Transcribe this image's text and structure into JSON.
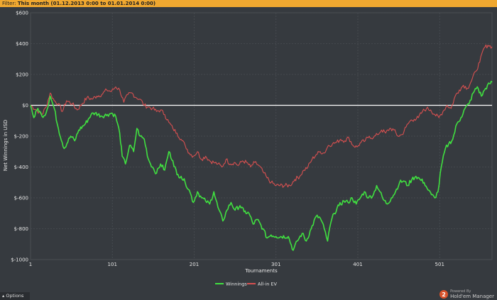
{
  "filter": {
    "label": "Filter:",
    "value": "This month (01.12.2013 0:00 to 01.01.2014 0:00)"
  },
  "footer": {
    "options_label": "Options",
    "options_icon": "caret-up-icon",
    "powered_by": "Powered By",
    "brand": "Hold'em Manager",
    "brand_badge": "2"
  },
  "chart_data": {
    "type": "line",
    "xlabel": "Tournaments",
    "ylabel": "Net Winnings in USD",
    "x_ticks": [
      1,
      101,
      201,
      301,
      401,
      501
    ],
    "y_ticks": [
      600,
      400,
      200,
      0,
      -200,
      -400,
      -600,
      -800,
      -1000
    ],
    "y_tick_labels": [
      "$600",
      "$400",
      "$200",
      "$0",
      "$-200",
      "$-400",
      "$-600",
      "$-800",
      "$-1000"
    ],
    "xlim": [
      1,
      565
    ],
    "ylim": [
      -1000,
      600
    ],
    "grid": true,
    "legend_position": "bottom-center",
    "colors": {
      "background": "#363a3f",
      "grid": "#4a4e53",
      "axis_text": "#e6e6e6",
      "zero_line": "#ffffff"
    },
    "series": [
      {
        "name": "Winnings",
        "color": "#40e040",
        "points": [
          [
            1,
            0
          ],
          [
            5,
            -80
          ],
          [
            10,
            -20
          ],
          [
            15,
            -70
          ],
          [
            20,
            -50
          ],
          [
            25,
            60
          ],
          [
            30,
            -20
          ],
          [
            35,
            -150
          ],
          [
            42,
            -280
          ],
          [
            50,
            -200
          ],
          [
            55,
            -230
          ],
          [
            60,
            -160
          ],
          [
            68,
            -120
          ],
          [
            75,
            -60
          ],
          [
            80,
            -50
          ],
          [
            88,
            -70
          ],
          [
            95,
            -60
          ],
          [
            100,
            -50
          ],
          [
            105,
            -70
          ],
          [
            110,
            -180
          ],
          [
            113,
            -330
          ],
          [
            117,
            -380
          ],
          [
            122,
            -260
          ],
          [
            127,
            -300
          ],
          [
            131,
            -150
          ],
          [
            135,
            -200
          ],
          [
            140,
            -220
          ],
          [
            145,
            -350
          ],
          [
            150,
            -400
          ],
          [
            155,
            -440
          ],
          [
            160,
            -380
          ],
          [
            165,
            -420
          ],
          [
            170,
            -300
          ],
          [
            175,
            -360
          ],
          [
            180,
            -450
          ],
          [
            185,
            -460
          ],
          [
            190,
            -500
          ],
          [
            195,
            -550
          ],
          [
            200,
            -630
          ],
          [
            205,
            -560
          ],
          [
            210,
            -600
          ],
          [
            215,
            -620
          ],
          [
            220,
            -640
          ],
          [
            225,
            -560
          ],
          [
            230,
            -660
          ],
          [
            236,
            -750
          ],
          [
            241,
            -680
          ],
          [
            246,
            -630
          ],
          [
            251,
            -680
          ],
          [
            257,
            -650
          ],
          [
            262,
            -690
          ],
          [
            268,
            -700
          ],
          [
            273,
            -770
          ],
          [
            278,
            -740
          ],
          [
            285,
            -800
          ],
          [
            290,
            -860
          ],
          [
            295,
            -840
          ],
          [
            301,
            -850
          ],
          [
            316,
            -850
          ],
          [
            322,
            -940
          ],
          [
            327,
            -880
          ],
          [
            333,
            -830
          ],
          [
            338,
            -880
          ],
          [
            344,
            -800
          ],
          [
            350,
            -720
          ],
          [
            355,
            -730
          ],
          [
            360,
            -800
          ],
          [
            364,
            -880
          ],
          [
            368,
            -760
          ],
          [
            372,
            -700
          ],
          [
            378,
            -650
          ],
          [
            384,
            -620
          ],
          [
            389,
            -630
          ],
          [
            394,
            -600
          ],
          [
            399,
            -640
          ],
          [
            404,
            -600
          ],
          [
            409,
            -560
          ],
          [
            414,
            -600
          ],
          [
            420,
            -580
          ],
          [
            424,
            -520
          ],
          [
            428,
            -560
          ],
          [
            432,
            -610
          ],
          [
            437,
            -640
          ],
          [
            442,
            -600
          ],
          [
            447,
            -560
          ],
          [
            452,
            -500
          ],
          [
            457,
            -490
          ],
          [
            462,
            -520
          ],
          [
            467,
            -480
          ],
          [
            472,
            -460
          ],
          [
            477,
            -480
          ],
          [
            482,
            -500
          ],
          [
            487,
            -550
          ],
          [
            491,
            -580
          ],
          [
            495,
            -600
          ],
          [
            499,
            -560
          ],
          [
            503,
            -400
          ],
          [
            508,
            -280
          ],
          [
            512,
            -250
          ],
          [
            517,
            -220
          ],
          [
            522,
            -120
          ],
          [
            527,
            -80
          ],
          [
            532,
            -20
          ],
          [
            537,
            10
          ],
          [
            542,
            80
          ],
          [
            547,
            120
          ],
          [
            552,
            60
          ],
          [
            557,
            110
          ],
          [
            562,
            140
          ],
          [
            565,
            150
          ]
        ]
      },
      {
        "name": "All-in EV",
        "color": "#d85050",
        "points": [
          [
            1,
            0
          ],
          [
            8,
            -30
          ],
          [
            15,
            -60
          ],
          [
            20,
            -10
          ],
          [
            25,
            80
          ],
          [
            30,
            30
          ],
          [
            35,
            10
          ],
          [
            40,
            -40
          ],
          [
            45,
            30
          ],
          [
            52,
            10
          ],
          [
            58,
            -30
          ],
          [
            64,
            10
          ],
          [
            70,
            50
          ],
          [
            76,
            40
          ],
          [
            82,
            60
          ],
          [
            88,
            70
          ],
          [
            94,
            100
          ],
          [
            100,
            90
          ],
          [
            105,
            120
          ],
          [
            110,
            100
          ],
          [
            115,
            20
          ],
          [
            120,
            70
          ],
          [
            125,
            80
          ],
          [
            130,
            50
          ],
          [
            135,
            40
          ],
          [
            140,
            0
          ],
          [
            145,
            -10
          ],
          [
            150,
            -20
          ],
          [
            155,
            -40
          ],
          [
            160,
            -30
          ],
          [
            165,
            -60
          ],
          [
            170,
            -110
          ],
          [
            175,
            -150
          ],
          [
            180,
            -180
          ],
          [
            185,
            -220
          ],
          [
            190,
            -260
          ],
          [
            195,
            -310
          ],
          [
            200,
            -330
          ],
          [
            205,
            -300
          ],
          [
            210,
            -350
          ],
          [
            215,
            -330
          ],
          [
            220,
            -360
          ],
          [
            225,
            -370
          ],
          [
            230,
            -380
          ],
          [
            235,
            -400
          ],
          [
            240,
            -350
          ],
          [
            245,
            -380
          ],
          [
            250,
            -370
          ],
          [
            255,
            -390
          ],
          [
            260,
            -360
          ],
          [
            265,
            -370
          ],
          [
            270,
            -400
          ],
          [
            275,
            -370
          ],
          [
            280,
            -390
          ],
          [
            285,
            -430
          ],
          [
            290,
            -470
          ],
          [
            295,
            -500
          ],
          [
            301,
            -520
          ],
          [
            318,
            -520
          ],
          [
            324,
            -480
          ],
          [
            330,
            -460
          ],
          [
            335,
            -420
          ],
          [
            340,
            -400
          ],
          [
            345,
            -350
          ],
          [
            350,
            -320
          ],
          [
            355,
            -300
          ],
          [
            360,
            -310
          ],
          [
            365,
            -260
          ],
          [
            370,
            -250
          ],
          [
            375,
            -240
          ],
          [
            380,
            -220
          ],
          [
            385,
            -230
          ],
          [
            390,
            -210
          ],
          [
            395,
            -260
          ],
          [
            400,
            -270
          ],
          [
            405,
            -240
          ],
          [
            410,
            -230
          ],
          [
            415,
            -200
          ],
          [
            420,
            -210
          ],
          [
            425,
            -190
          ],
          [
            430,
            -160
          ],
          [
            435,
            -180
          ],
          [
            440,
            -150
          ],
          [
            445,
            -160
          ],
          [
            450,
            -200
          ],
          [
            455,
            -190
          ],
          [
            460,
            -140
          ],
          [
            465,
            -100
          ],
          [
            470,
            -90
          ],
          [
            475,
            -80
          ],
          [
            480,
            -40
          ],
          [
            485,
            -20
          ],
          [
            490,
            -30
          ],
          [
            495,
            -60
          ],
          [
            500,
            -80
          ],
          [
            505,
            -40
          ],
          [
            510,
            0
          ],
          [
            515,
            -20
          ],
          [
            520,
            60
          ],
          [
            525,
            100
          ],
          [
            530,
            130
          ],
          [
            535,
            110
          ],
          [
            540,
            160
          ],
          [
            545,
            220
          ],
          [
            550,
            280
          ],
          [
            555,
            370
          ],
          [
            560,
            390
          ],
          [
            565,
            380
          ]
        ]
      }
    ]
  }
}
